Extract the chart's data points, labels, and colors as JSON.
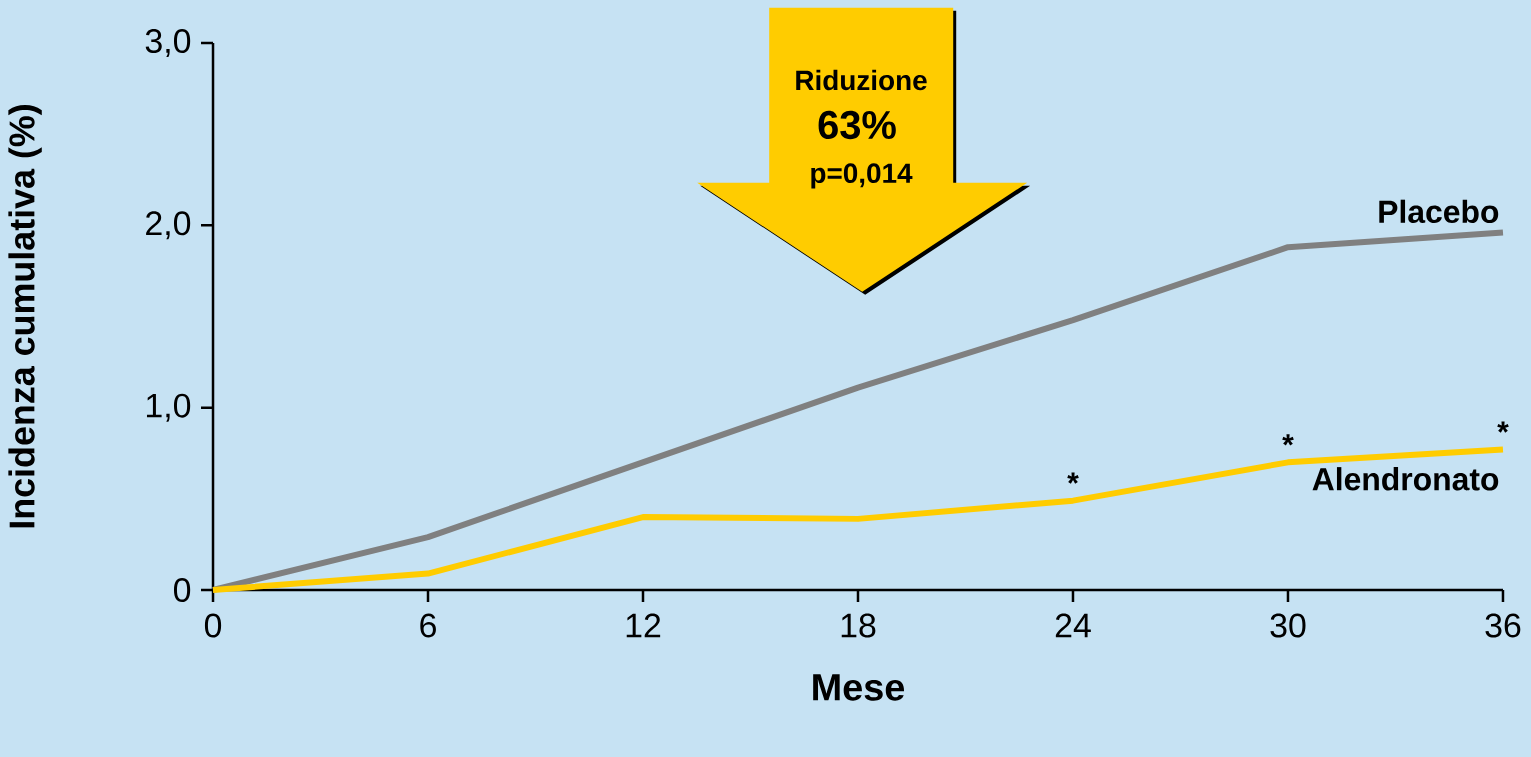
{
  "chart_data": {
    "type": "line",
    "xlabel": "Mese",
    "ylabel": "Incidenza cumulativa (%)",
    "x": [
      0,
      6,
      12,
      18,
      24,
      30,
      36
    ],
    "series": [
      {
        "name": "Placebo",
        "color": "#808080",
        "values": [
          0,
          0.29,
          0.7,
          1.11,
          1.48,
          1.88,
          1.96
        ]
      },
      {
        "name": "Alendronato",
        "color": "#ffcc00",
        "values": [
          0,
          0.09,
          0.4,
          0.39,
          0.49,
          0.7,
          0.77
        ]
      }
    ],
    "xlim": [
      0,
      36
    ],
    "xticks": [
      0,
      6,
      12,
      18,
      24,
      30,
      36
    ],
    "ylim": [
      0,
      3
    ],
    "yticks": [
      0,
      {
        "value": 1,
        "label": "1,0"
      },
      {
        "value": 2,
        "label": "2,0"
      },
      {
        "value": 3,
        "label": "3,0"
      }
    ],
    "marker": "none",
    "line_style": "solid",
    "grid": false,
    "annotations": [
      "Riduzione",
      "63%",
      "p=0,014",
      {
        "text": "*",
        "x": 24,
        "y": 0.49
      },
      {
        "text": "*",
        "x": 30,
        "y": 0.7
      },
      {
        "text": "*",
        "x": 36,
        "y": 0.77
      }
    ]
  }
}
